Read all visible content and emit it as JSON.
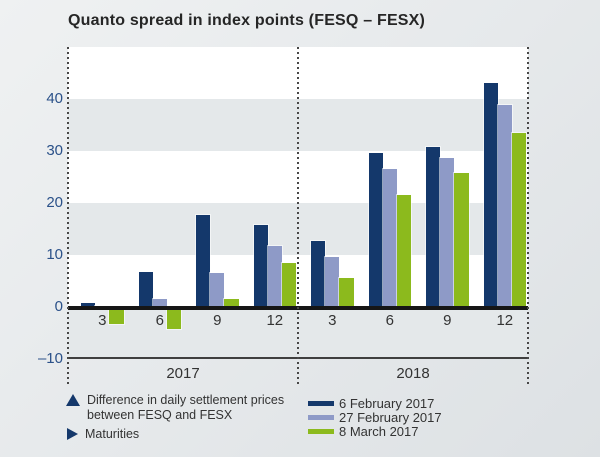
{
  "title": "Quanto spread in index points (FESQ – FESX)",
  "colors": {
    "series_dark_blue": "#14386b",
    "series_light_blue": "#8e9ac7",
    "series_green": "#8cba1d",
    "axis_label_blue": "#2b5189",
    "band_gray": "#e4e8ea",
    "zero_line": "#161616"
  },
  "chart_data": {
    "type": "bar",
    "title": "Quanto spread in index points (FESQ – FESX)",
    "xlabel": "Maturities",
    "ylabel": "Quanto spread in index points",
    "ylim": [
      -10,
      50
    ],
    "ytick_values": [
      40,
      30,
      20,
      10,
      0,
      -10
    ],
    "ytick_labels": [
      "40",
      "30",
      "20",
      "10",
      "0",
      "–10"
    ],
    "grid": "alternating horizontal bands, 10-unit steps",
    "legend_position": "bottom-right",
    "panels": [
      {
        "year": "2017",
        "categories": [
          "3",
          "6",
          "9",
          "12"
        ]
      },
      {
        "year": "2018",
        "categories": [
          "3",
          "6",
          "9",
          "12"
        ]
      }
    ],
    "series": [
      {
        "name": "6 February 2017",
        "color": "#14386b",
        "values": {
          "2017": [
            0.8,
            6.7,
            17.7,
            15.8
          ],
          "2018": [
            12.6,
            29.6,
            30.7,
            43.0
          ]
        }
      },
      {
        "name": "27 February 2017",
        "color": "#8e9ac7",
        "values": {
          "2017": [
            0.1,
            1.6,
            6.6,
            11.7
          ],
          "2018": [
            9.7,
            26.5,
            28.7,
            38.9
          ]
        }
      },
      {
        "name": "8 March 2017",
        "color": "#8cba1d",
        "values": {
          "2017": [
            -2.5,
            -3.5,
            1.5,
            8.5
          ],
          "2018": [
            5.6,
            21.6,
            25.7,
            33.5
          ]
        }
      }
    ]
  },
  "legend_left": {
    "line1": "Difference in daily settlement prices",
    "line2": "between FESQ and FESX",
    "maturities_label": "Maturities"
  }
}
